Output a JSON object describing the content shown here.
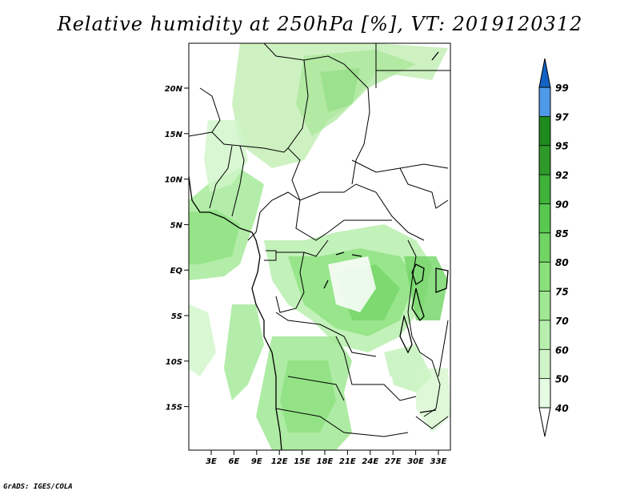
{
  "title": "Relative humidity at 250hPa [%], VT: 2019120312",
  "credit": "GrADS: IGES/COLA",
  "map": {
    "lat_ticks": [
      "20N",
      "15N",
      "10N",
      "5N",
      "EQ",
      "5S",
      "10S",
      "15S"
    ],
    "lon_ticks": [
      "3E",
      "6E",
      "9E",
      "12E",
      "15E",
      "18E",
      "21E",
      "24E",
      "27E",
      "30E",
      "33E"
    ]
  },
  "colorbar": {
    "levels": [
      "40",
      "50",
      "60",
      "70",
      "75",
      "80",
      "85",
      "90",
      "92",
      "95",
      "97",
      "99"
    ],
    "colors": [
      "#e6fbe3",
      "#d0f5c8",
      "#b8efae",
      "#a0e894",
      "#8ae07c",
      "#70d564",
      "#58c94e",
      "#3fb23a",
      "#2e9a2a",
      "#1e8a1e",
      "#4f9ae8",
      "#2b78d8",
      "#1463c4"
    ]
  }
}
